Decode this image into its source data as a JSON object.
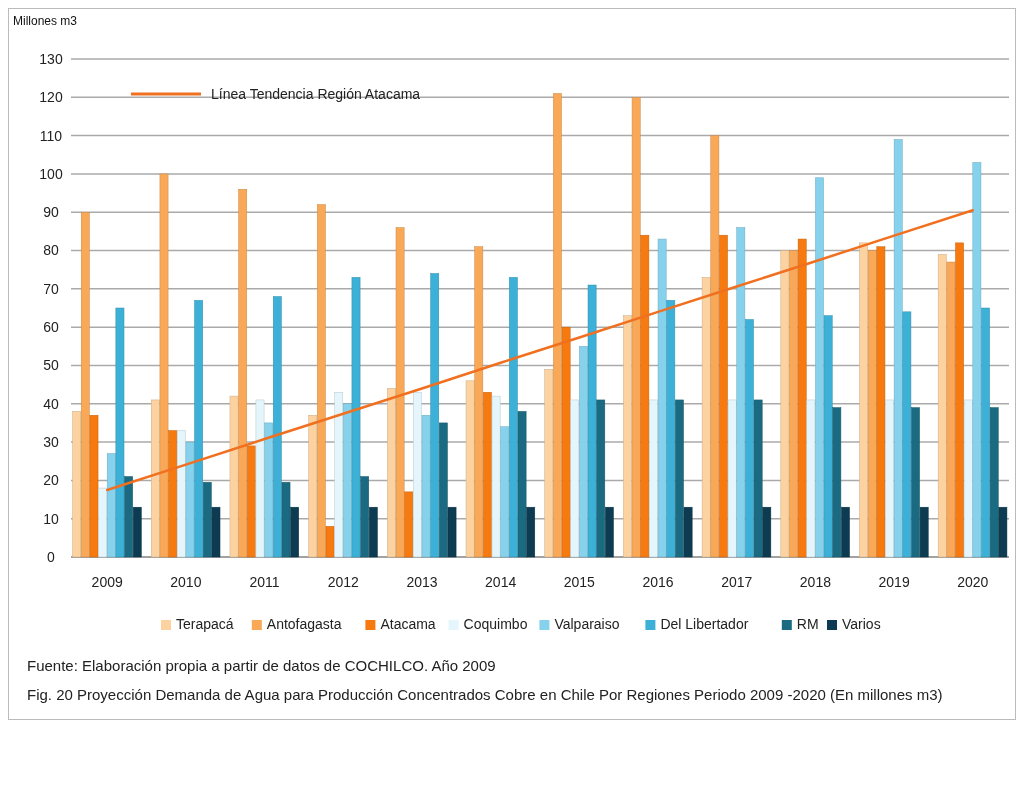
{
  "chart_data": {
    "type": "bar",
    "ylabel": "Millones m3",
    "categories": [
      "2009",
      "2010",
      "2011",
      "2012",
      "2013",
      "2014",
      "2015",
      "2016",
      "2017",
      "2018",
      "2019",
      "2020"
    ],
    "series": [
      {
        "name": "Terapacá",
        "color": "#fcd3a0",
        "values": [
          38,
          41,
          42,
          37,
          44,
          46,
          49,
          63,
          73,
          80,
          82,
          79
        ]
      },
      {
        "name": "Antofagasta",
        "color": "#f9a857",
        "values": [
          90,
          100,
          96,
          92,
          86,
          81,
          121,
          120,
          110,
          80,
          80,
          77
        ]
      },
      {
        "name": "Atacama",
        "color": "#f77a10",
        "values": [
          37,
          33,
          29,
          8,
          17,
          43,
          60,
          84,
          84,
          83,
          81,
          82
        ]
      },
      {
        "name": "Coquimbo",
        "color": "#e4f6fb",
        "values": [
          18,
          33,
          41,
          43,
          43,
          42,
          41,
          41,
          41,
          41,
          41,
          41
        ]
      },
      {
        "name": "Valparaiso",
        "color": "#86d2ec",
        "values": [
          27,
          30,
          35,
          40,
          37,
          34,
          55,
          83,
          86,
          99,
          109,
          103
        ]
      },
      {
        "name": "Del Libertador",
        "color": "#3cb0d6",
        "values": [
          65,
          67,
          68,
          73,
          74,
          73,
          71,
          67,
          62,
          63,
          64,
          65
        ]
      },
      {
        "name": "RM",
        "color": "#1a6a82",
        "values": [
          21,
          19.5,
          19.5,
          21,
          35,
          38,
          41,
          41,
          41,
          39,
          39,
          39
        ]
      },
      {
        "name": "Varios",
        "color": "#0d3c52",
        "values": [
          13,
          13,
          13,
          13,
          13,
          13,
          13,
          13,
          13,
          13,
          13,
          13
        ]
      },
      {
        "name": "Línea Tendencia Región Atacama",
        "type": "line",
        "color": "#f07020",
        "values": [
          17.5,
          24.1,
          30.8,
          37.4,
          44.0,
          50.7,
          57.3,
          64.0,
          70.6,
          77.2,
          83.9,
          90.5
        ]
      }
    ],
    "ylim": [
      0,
      130
    ],
    "yticks": [
      0,
      10,
      20,
      30,
      40,
      50,
      60,
      70,
      80,
      90,
      100,
      110,
      120,
      130
    ],
    "grid": "y",
    "legend": "bottom",
    "annotations": [
      "Fuente: Elaboración propia a partir de datos de COCHILCO. Año 2009",
      "Fig. 20 Proyección Demanda de Agua para Producción Concentrados Cobre en Chile Por Regiones Periodo 2009 -2020 (En millones m3)"
    ]
  }
}
